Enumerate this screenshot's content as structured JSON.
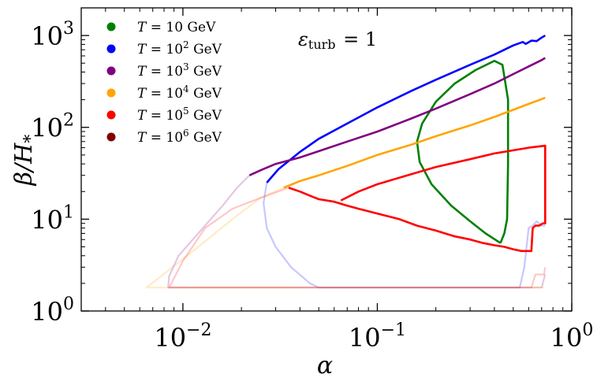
{
  "chart_data": {
    "type": "line",
    "xscale": "log",
    "yscale": "log",
    "xlim": [
      0.003,
      1
    ],
    "ylim": [
      1,
      2000
    ],
    "grid": false,
    "legend_position": "top-left",
    "xlabel": {
      "base": "α",
      "sub": "",
      "sup": ""
    },
    "ylabel": {
      "base": "β/H",
      "sub": "*"
    },
    "annotation": {
      "base": "ε",
      "sub": "turb",
      "rest": " = 1"
    },
    "x_ticks": [
      {
        "value": 0.01,
        "base": "10",
        "exp": "−2"
      },
      {
        "value": 0.1,
        "base": "10",
        "exp": "−1"
      },
      {
        "value": 1,
        "base": "10",
        "exp": "0"
      }
    ],
    "y_ticks": [
      {
        "value": 1,
        "base": "10",
        "exp": "0"
      },
      {
        "value": 10,
        "base": "10",
        "exp": "1"
      },
      {
        "value": 100,
        "base": "10",
        "exp": "2"
      },
      {
        "value": 1000,
        "base": "10",
        "exp": "3"
      }
    ],
    "series": [
      {
        "name": "T = 10 GeV",
        "legend_prefix": "T = 10",
        "legend_exp": "",
        "legend_unit": " GeV",
        "color": "#008000",
        "bold": [
          [
            0.43,
            5.5
          ],
          [
            0.36,
            7
          ],
          [
            0.3,
            9.5
          ],
          [
            0.24,
            14
          ],
          [
            0.19,
            24
          ],
          [
            0.165,
            42
          ],
          [
            0.16,
            70
          ],
          [
            0.17,
            110
          ],
          [
            0.2,
            190
          ],
          [
            0.25,
            300
          ],
          [
            0.32,
            420
          ],
          [
            0.4,
            530
          ],
          [
            0.44,
            480
          ],
          [
            0.47,
            200
          ],
          [
            0.47,
            40
          ],
          [
            0.465,
            10
          ],
          [
            0.45,
            7
          ],
          [
            0.43,
            5.5
          ]
        ],
        "faint": []
      },
      {
        "name": "T = 10^2 GeV",
        "legend_prefix": "T = 10",
        "legend_exp": "2",
        "legend_unit": " GeV",
        "color": "#0000ff",
        "bold": [
          [
            0.027,
            25
          ],
          [
            0.031,
            35
          ],
          [
            0.04,
            54
          ],
          [
            0.05,
            75
          ],
          [
            0.07,
            110
          ],
          [
            0.1,
            165
          ],
          [
            0.15,
            250
          ],
          [
            0.2,
            330
          ],
          [
            0.3,
            480
          ],
          [
            0.4,
            620
          ],
          [
            0.5,
            780
          ],
          [
            0.56,
            850
          ],
          [
            0.58,
            810
          ],
          [
            0.62,
            880
          ],
          [
            0.66,
            870
          ],
          [
            0.7,
            950
          ],
          [
            0.73,
            1000
          ]
        ],
        "faint": [
          [
            0.027,
            25
          ],
          [
            0.026,
            15
          ],
          [
            0.027,
            8
          ],
          [
            0.03,
            5
          ],
          [
            0.036,
            3
          ],
          [
            0.045,
            2
          ],
          [
            0.05,
            1.8
          ],
          [
            0.2,
            1.8
          ],
          [
            0.54,
            1.8
          ],
          [
            0.57,
            3
          ],
          [
            0.6,
            8
          ],
          [
            0.63,
            8.5
          ],
          [
            0.66,
            9.5
          ],
          [
            0.7,
            8.5
          ],
          [
            0.73,
            8.5
          ]
        ]
      },
      {
        "name": "T = 10^3 GeV",
        "legend_prefix": "T = 10",
        "legend_exp": "3",
        "legend_unit": " GeV",
        "color": "#800080",
        "bold": [
          [
            0.022,
            30
          ],
          [
            0.025,
            34
          ],
          [
            0.03,
            40
          ],
          [
            0.04,
            47
          ],
          [
            0.05,
            55
          ],
          [
            0.07,
            70
          ],
          [
            0.1,
            90
          ],
          [
            0.15,
            125
          ],
          [
            0.2,
            160
          ],
          [
            0.3,
            230
          ],
          [
            0.4,
            300
          ],
          [
            0.5,
            380
          ],
          [
            0.6,
            460
          ],
          [
            0.7,
            540
          ],
          [
            0.73,
            570
          ]
        ],
        "faint": [
          [
            0.022,
            30
          ],
          [
            0.019,
            22
          ],
          [
            0.016,
            14
          ],
          [
            0.012,
            7
          ],
          [
            0.0095,
            4
          ],
          [
            0.0085,
            2.4
          ],
          [
            0.0084,
            1.8
          ],
          [
            0.1,
            1.8
          ],
          [
            0.7,
            1.8
          ],
          [
            0.73,
            2.5
          ]
        ]
      },
      {
        "name": "T = 10^4 GeV",
        "legend_prefix": "T = 10",
        "legend_exp": "4",
        "legend_unit": " GeV",
        "color": "#ffa500",
        "bold": [
          [
            0.033,
            22
          ],
          [
            0.04,
            26
          ],
          [
            0.05,
            30
          ],
          [
            0.07,
            38
          ],
          [
            0.1,
            50
          ],
          [
            0.15,
            65
          ],
          [
            0.2,
            80
          ],
          [
            0.3,
            105
          ],
          [
            0.4,
            130
          ],
          [
            0.5,
            155
          ],
          [
            0.6,
            180
          ],
          [
            0.73,
            210
          ]
        ],
        "faint": [
          [
            0.033,
            22
          ],
          [
            0.025,
            17
          ],
          [
            0.018,
            10
          ],
          [
            0.012,
            5
          ],
          [
            0.0085,
            2.8
          ],
          [
            0.0065,
            1.8
          ],
          [
            0.1,
            1.8
          ],
          [
            0.72,
            1.8
          ]
        ]
      },
      {
        "name": "T = 10^5 GeV",
        "legend_prefix": "T = 10",
        "legend_exp": "5",
        "legend_unit": " GeV",
        "color": "#ff0000",
        "bold": [
          [
            0.035,
            22
          ],
          [
            0.04,
            20
          ],
          [
            0.045,
            18
          ],
          [
            0.05,
            16.5
          ],
          [
            0.06,
            15.5
          ],
          [
            0.07,
            14
          ],
          [
            0.08,
            13
          ],
          [
            0.1,
            11.5
          ],
          [
            0.13,
            10
          ],
          [
            0.16,
            8.5
          ],
          [
            0.2,
            7.5
          ],
          [
            0.25,
            6.5
          ],
          [
            0.3,
            6
          ],
          [
            0.35,
            5.5
          ],
          [
            0.4,
            5.2
          ],
          [
            0.45,
            5
          ],
          [
            0.5,
            4.7
          ],
          [
            0.55,
            4.5
          ],
          [
            0.62,
            4.5
          ],
          [
            0.63,
            8
          ],
          [
            0.65,
            8.5
          ],
          [
            0.68,
            8.5
          ],
          [
            0.71,
            9
          ],
          [
            0.73,
            9
          ],
          [
            0.73,
            28
          ],
          [
            0.73,
            63
          ],
          [
            0.6,
            60
          ],
          [
            0.4,
            52
          ],
          [
            0.3,
            45
          ],
          [
            0.2,
            37
          ],
          [
            0.15,
            31
          ],
          [
            0.1,
            24
          ],
          [
            0.08,
            20
          ],
          [
            0.065,
            16
          ]
        ],
        "faint": [
          [
            0.035,
            22
          ],
          [
            0.025,
            17
          ],
          [
            0.018,
            13
          ],
          [
            0.013,
            8
          ],
          [
            0.01,
            3.5
          ],
          [
            0.0085,
            1.8
          ],
          [
            0.1,
            1.8
          ],
          [
            0.62,
            1.8
          ],
          [
            0.65,
            2.5
          ],
          [
            0.72,
            2.5
          ],
          [
            0.73,
            3
          ]
        ]
      },
      {
        "name": "T = 10^6 GeV",
        "legend_prefix": "T = 10",
        "legend_exp": "6",
        "legend_unit": " GeV",
        "color": "#800000",
        "bold": [],
        "faint": []
      }
    ]
  }
}
